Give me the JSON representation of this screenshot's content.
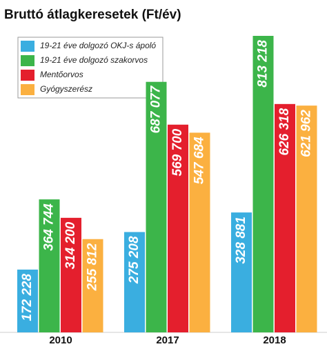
{
  "chart_data": {
    "type": "bar",
    "title": "Bruttó átlagkeresetek (Ft/év)",
    "categories": [
      "2010",
      "2017",
      "2018"
    ],
    "series": [
      {
        "name": "19-21 éve dolgozó OKJ-s ápoló",
        "color": "#3aaee0",
        "values": [
          172228,
          275208,
          328881
        ],
        "value_labels": [
          "172 228",
          "275 208",
          "328 881"
        ]
      },
      {
        "name": "19-21 éve dolgozó szakorvos",
        "color": "#3cb54a",
        "values": [
          364744,
          687077,
          813218
        ],
        "value_labels": [
          "364 744",
          "687 077",
          "813 218"
        ]
      },
      {
        "name": "Mentőorvos",
        "color": "#e41f2d",
        "values": [
          314200,
          569700,
          626318
        ],
        "value_labels": [
          "314 200",
          "569 700",
          "626 318"
        ]
      },
      {
        "name": "Gyógyszerész",
        "color": "#fbb040",
        "values": [
          255812,
          547684,
          621962
        ],
        "value_labels": [
          "255 812",
          "547 684",
          "621 962"
        ]
      }
    ]
  }
}
